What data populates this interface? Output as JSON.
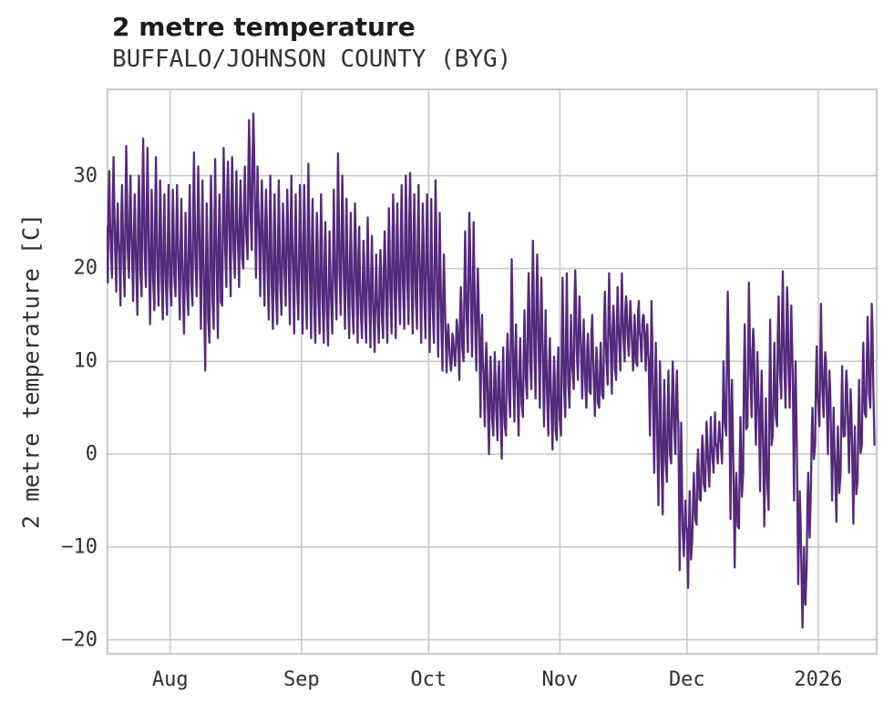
{
  "header": {
    "title": "2 metre temperature",
    "subtitle": "BUFFALO/JOHNSON COUNTY (BYG)"
  },
  "chart_data": {
    "type": "line",
    "title": "2 metre temperature",
    "subtitle": "BUFFALO/JOHNSON COUNTY (BYG)",
    "xlabel": "",
    "ylabel": "2 metre temperature [C]",
    "x_tick_labels": [
      "Aug",
      "Sep",
      "Oct",
      "Nov",
      "Dec",
      "2026"
    ],
    "x_tick_days": [
      15,
      46,
      76,
      107,
      137,
      168
    ],
    "y_ticks": [
      30,
      20,
      10,
      0,
      -10,
      -20
    ],
    "ylim": [
      -21.6,
      39.4
    ],
    "xlim_days": [
      0,
      182
    ],
    "grid": true,
    "legend": false,
    "line_color": "#542a7c",
    "grid_color": "#c9c9c9",
    "series": [
      {
        "name": "2 metre temperature",
        "units": "C",
        "sampling": "daily min/max envelope, day 0 = series start (mid-July), hourly wiggle synthesized",
        "daily_min_max": [
          [
            18.5,
            30.5
          ],
          [
            19,
            32
          ],
          [
            17.5,
            27
          ],
          [
            16,
            29
          ],
          [
            17,
            33.2
          ],
          [
            19,
            30
          ],
          [
            16.5,
            28
          ],
          [
            15,
            30
          ],
          [
            17,
            34
          ],
          [
            18,
            33
          ],
          [
            14,
            28.5
          ],
          [
            15.5,
            32
          ],
          [
            16,
            29.5
          ],
          [
            14.5,
            28
          ],
          [
            15,
            29
          ],
          [
            16,
            28.5
          ],
          [
            17,
            29
          ],
          [
            14.5,
            27.5
          ],
          [
            13,
            26
          ],
          [
            15,
            29
          ],
          [
            16,
            32.5
          ],
          [
            17,
            31
          ],
          [
            13.5,
            29.5
          ],
          [
            9,
            27
          ],
          [
            12,
            30
          ],
          [
            13.5,
            31.8
          ],
          [
            12.5,
            28
          ],
          [
            16,
            33
          ],
          [
            18,
            31.5
          ],
          [
            17,
            32
          ],
          [
            19,
            30.5
          ],
          [
            18,
            29.5
          ],
          [
            20,
            31
          ],
          [
            21,
            36
          ],
          [
            22,
            36.7
          ],
          [
            19,
            31
          ],
          [
            17,
            29.5
          ],
          [
            16,
            28.5
          ],
          [
            14.5,
            30
          ],
          [
            13.5,
            28
          ],
          [
            14,
            29.5
          ],
          [
            15,
            27
          ],
          [
            16,
            28.5
          ],
          [
            14,
            30
          ],
          [
            13,
            28
          ],
          [
            14.5,
            29
          ],
          [
            13,
            29
          ],
          [
            13.5,
            31.3
          ],
          [
            12.5,
            27.5
          ],
          [
            12,
            26
          ],
          [
            13,
            28
          ],
          [
            12,
            25
          ],
          [
            11.7,
            24
          ],
          [
            13,
            28.5
          ],
          [
            14.5,
            32.4
          ],
          [
            15,
            30
          ],
          [
            13.5,
            27.5
          ],
          [
            12.5,
            26
          ],
          [
            13,
            27
          ],
          [
            12,
            24.5
          ],
          [
            12.5,
            23
          ],
          [
            12,
            25.5
          ],
          [
            11.5,
            23.5
          ],
          [
            11,
            21.5
          ],
          [
            12,
            22
          ],
          [
            12.5,
            24
          ],
          [
            12,
            26.5
          ],
          [
            13,
            28
          ],
          [
            12.5,
            27
          ],
          [
            14,
            29
          ],
          [
            13.5,
            30
          ],
          [
            14,
            30.3
          ],
          [
            13,
            28
          ],
          [
            13.5,
            29
          ],
          [
            12,
            27
          ],
          [
            12.5,
            28
          ],
          [
            11,
            27.5
          ],
          [
            12,
            29.5
          ],
          [
            10.5,
            26
          ],
          [
            9,
            21.5
          ],
          [
            8.8,
            14
          ],
          [
            9,
            13
          ],
          [
            9.5,
            14.5
          ],
          [
            8,
            18
          ],
          [
            10,
            24
          ],
          [
            11,
            26
          ],
          [
            10.5,
            25
          ],
          [
            9,
            20
          ],
          [
            4,
            15
          ],
          [
            3,
            12
          ],
          [
            0,
            10.5
          ],
          [
            2,
            11
          ],
          [
            1.5,
            10
          ],
          [
            -0.5,
            11.5
          ],
          [
            2,
            13
          ],
          [
            4,
            21
          ],
          [
            3.5,
            14
          ],
          [
            2,
            12.5
          ],
          [
            4,
            15.5
          ],
          [
            6,
            19.5
          ],
          [
            7,
            23
          ],
          [
            6,
            21.5
          ],
          [
            5,
            19
          ],
          [
            3,
            15.5
          ],
          [
            2,
            12.5
          ],
          [
            0.5,
            10.5
          ],
          [
            1.5,
            11.5
          ],
          [
            2,
            19
          ],
          [
            4,
            19.5
          ],
          [
            5,
            15
          ],
          [
            7,
            19.8
          ],
          [
            8,
            17
          ],
          [
            6,
            14.5
          ],
          [
            5,
            13
          ],
          [
            6.5,
            15
          ],
          [
            4.1,
            11.5
          ],
          [
            5,
            12
          ],
          [
            6,
            17.5
          ],
          [
            7.5,
            19.5
          ],
          [
            6.5,
            16
          ],
          [
            8,
            18
          ],
          [
            9,
            19.5
          ],
          [
            10,
            17
          ],
          [
            10.6,
            16.5
          ],
          [
            9,
            15
          ],
          [
            9.5,
            16.5
          ],
          [
            10,
            15
          ],
          [
            9,
            14
          ],
          [
            2,
            16.5
          ],
          [
            -2,
            12
          ],
          [
            -5.5,
            10
          ],
          [
            -6.5,
            8
          ],
          [
            -3,
            9
          ],
          [
            -1,
            10
          ],
          [
            0,
            9
          ],
          [
            -12.5,
            3.4
          ],
          [
            -11,
            -5
          ],
          [
            -14.4,
            -4
          ],
          [
            -9,
            -2
          ],
          [
            -7.6,
            0.5
          ],
          [
            -5,
            2
          ],
          [
            -4,
            3.5
          ],
          [
            -3.5,
            4
          ],
          [
            -2,
            4.5
          ],
          [
            -1,
            3.5
          ],
          [
            -1,
            10
          ],
          [
            2,
            17.5
          ],
          [
            -7,
            8
          ],
          [
            -12.2,
            -2
          ],
          [
            -8,
            4
          ],
          [
            -2,
            14
          ],
          [
            3,
            18.5
          ],
          [
            4,
            13.5
          ],
          [
            1,
            11
          ],
          [
            -4,
            9
          ],
          [
            -7.8,
            6
          ],
          [
            -6,
            14.5
          ],
          [
            2,
            12
          ],
          [
            3,
            17
          ],
          [
            6,
            19.7
          ],
          [
            5,
            18
          ],
          [
            5,
            16
          ],
          [
            -5,
            10
          ],
          [
            -14,
            -4
          ],
          [
            -18.7,
            -10
          ],
          [
            -12,
            -2
          ],
          [
            -3.4,
            5
          ],
          [
            1,
            11.6
          ],
          [
            3,
            16.2
          ],
          [
            4,
            11
          ],
          [
            0,
            9
          ],
          [
            -5,
            5
          ],
          [
            -7.3,
            3
          ],
          [
            -2,
            9.5
          ],
          [
            2,
            9
          ],
          [
            -2,
            7
          ],
          [
            -7.5,
            3
          ],
          [
            -3,
            8
          ],
          [
            1,
            12
          ],
          [
            4,
            14.8
          ],
          [
            5,
            16.2
          ],
          [
            1,
            12.5
          ]
        ]
      }
    ]
  }
}
